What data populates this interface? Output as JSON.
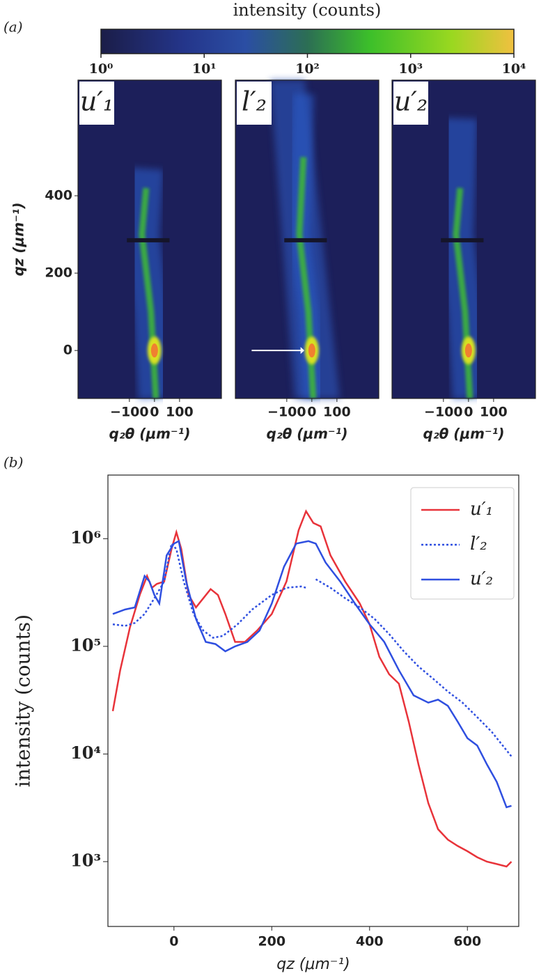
{
  "chart_data": [
    {
      "type": "heatmap",
      "panel_label": "(a)",
      "colorbar": {
        "title": "intensity (counts)",
        "lim": [
          1,
          10000
        ],
        "log": true,
        "ticks": [
          {
            "value": 1,
            "label": "10⁰"
          },
          {
            "value": 10,
            "label": "10¹"
          },
          {
            "value": 100,
            "label": "10²"
          },
          {
            "value": 1000,
            "label": "10³"
          },
          {
            "value": 10000,
            "label": "10⁴"
          }
        ]
      },
      "panels": [
        {
          "label": "u′₁",
          "color": "#e8202a"
        },
        {
          "label": "l′₂",
          "color": "#2a45e0"
        },
        {
          "label": "u′₂",
          "color": "#2a45e0"
        }
      ],
      "xlabel": "q₂θ (μm⁻¹)",
      "ylabel": "qz (μm⁻¹)",
      "xlim": [
        -305,
        267
      ],
      "xticks": [
        {
          "value": -100,
          "label": "−100"
        },
        0,
        100
      ],
      "ylim": [
        -124,
        699
      ],
      "yticks": [
        0,
        200,
        400
      ]
    },
    {
      "type": "line",
      "panel_label": "(b)",
      "xlabel": "qz (μm⁻¹)",
      "ylabel": "intensity (counts)",
      "log_y": true,
      "legend": "upper right",
      "xlim": [
        -135,
        705
      ],
      "xticks": [
        0,
        200,
        400,
        600
      ],
      "ylim": [
        250,
        3900000
      ],
      "yticks": [
        {
          "value": 1000,
          "label": "10³"
        },
        {
          "value": 10000,
          "label": "10⁴"
        },
        {
          "value": 100000,
          "label": "10⁵"
        },
        {
          "value": 1000000,
          "label": "10⁶"
        }
      ],
      "series": [
        {
          "name": "u′₁",
          "color": "#e8333a",
          "dash": "solid",
          "x": [
            -125,
            -110,
            -90,
            -70,
            -55,
            -45,
            -35,
            -20,
            -5,
            5,
            15,
            30,
            45,
            60,
            75,
            90,
            105,
            125,
            145,
            170,
            200,
            230,
            255,
            270,
            285,
            300,
            320,
            350,
            380,
            400,
            420,
            440,
            460,
            480,
            500,
            520,
            540,
            560,
            580,
            600,
            620,
            640,
            660,
            680,
            690
          ],
          "values": [
            25000,
            60000,
            150000,
            300000,
            450000,
            350000,
            380000,
            400000,
            800000,
            1150000,
            800000,
            300000,
            230000,
            280000,
            340000,
            300000,
            200000,
            110000,
            110000,
            140000,
            200000,
            400000,
            1200000,
            1800000,
            1400000,
            1300000,
            700000,
            400000,
            250000,
            160000,
            80000,
            55000,
            45000,
            20000,
            8000,
            3500,
            2000,
            1600,
            1400,
            1250,
            1100,
            1000,
            950,
            900,
            1000
          ]
        },
        {
          "name": "l′₂",
          "color": "#2f4fe0",
          "dash": "dotted",
          "x": [
            -125,
            -100,
            -80,
            -60,
            -40,
            -20,
            -5,
            5,
            20,
            40,
            60,
            80,
            100,
            130,
            160,
            200,
            230,
            260,
            270,
            280,
            290,
            320,
            350,
            380,
            410,
            440,
            470,
            500,
            530,
            560,
            590,
            620,
            650,
            690
          ],
          "values": [
            160000,
            155000,
            165000,
            200000,
            280000,
            400000,
            900000,
            800000,
            400000,
            200000,
            140000,
            120000,
            125000,
            160000,
            220000,
            300000,
            350000,
            360000,
            350000,
            null,
            420000,
            350000,
            280000,
            230000,
            180000,
            130000,
            90000,
            65000,
            50000,
            38000,
            30000,
            22000,
            16000,
            9500
          ]
        },
        {
          "name": "u′₂",
          "color": "#2f4fe0",
          "dash": "solid",
          "x": [
            -125,
            -100,
            -80,
            -60,
            -50,
            -40,
            -30,
            -15,
            0,
            10,
            25,
            45,
            65,
            85,
            105,
            125,
            150,
            175,
            200,
            225,
            250,
            275,
            290,
            310,
            340,
            370,
            400,
            430,
            460,
            490,
            520,
            540,
            560,
            580,
            600,
            620,
            640,
            660,
            680,
            690
          ],
          "values": [
            200000,
            220000,
            230000,
            450000,
            400000,
            300000,
            250000,
            700000,
            900000,
            950000,
            400000,
            180000,
            110000,
            105000,
            90000,
            100000,
            110000,
            140000,
            250000,
            550000,
            900000,
            950000,
            900000,
            600000,
            400000,
            250000,
            160000,
            110000,
            60000,
            35000,
            30000,
            32000,
            28000,
            20000,
            14000,
            12000,
            8000,
            5500,
            3200,
            3300
          ]
        }
      ]
    }
  ]
}
